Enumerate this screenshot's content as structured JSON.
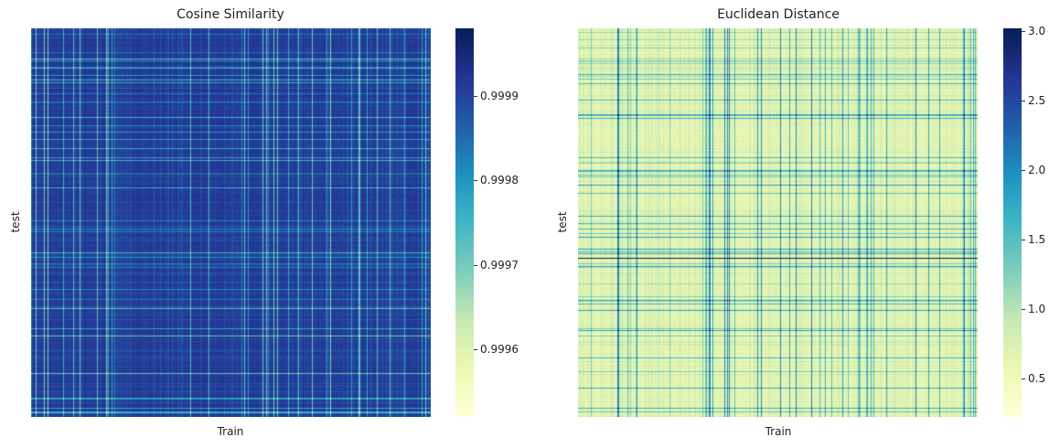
{
  "chart_data": [
    {
      "type": "heatmap",
      "title": "Cosine Similarity",
      "xlabel": "Train",
      "ylabel": "test",
      "colormap": "YlGnBu",
      "colorbar_range": [
        0.99952,
        0.99998
      ],
      "colorbar_ticks": [
        0.9996,
        0.9997,
        0.9998,
        0.9999
      ],
      "colorbar_tick_labels": [
        "0.9996",
        "0.9997",
        "0.9998",
        "0.9999"
      ],
      "typical_value": 0.99993,
      "value_distribution": "mostly high values (dark blue) with lighter vertical and horizontal stripes"
    },
    {
      "type": "heatmap",
      "title": "Euclidean Distance",
      "xlabel": "Train",
      "ylabel": "test",
      "colormap": "YlGnBu",
      "colorbar_range": [
        0.22,
        3.02
      ],
      "colorbar_ticks": [
        0.5,
        1.0,
        1.5,
        2.0,
        2.5,
        3.0
      ],
      "colorbar_tick_labels": [
        "0.5",
        "1.0",
        "1.5",
        "2.0",
        "2.5",
        "3.0"
      ],
      "typical_value": 0.55,
      "value_distribution": "mostly low values (light yellow) with teal vertical and horizontal stripes"
    }
  ],
  "colors": {
    "ylgnbu": [
      "#ffffd9",
      "#edf8b1",
      "#c7e9b4",
      "#7fcdbb",
      "#41b6c4",
      "#1d91c0",
      "#225ea8",
      "#253494",
      "#081d58"
    ]
  }
}
